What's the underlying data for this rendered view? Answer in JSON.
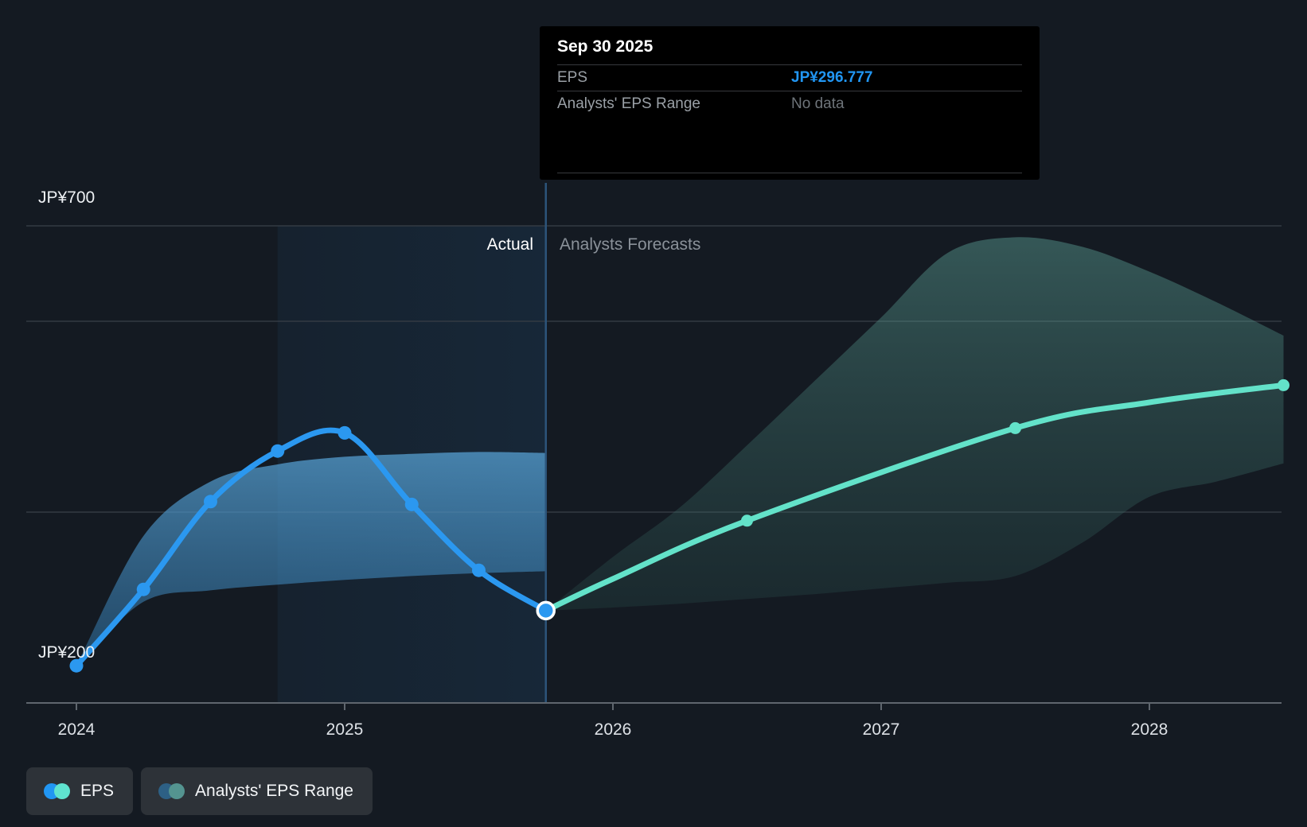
{
  "tooltip": {
    "date": "Sep 30 2025",
    "rows": [
      {
        "label": "EPS",
        "value": "JP¥296.777",
        "kind": "eps"
      },
      {
        "label": "Analysts' EPS Range",
        "value": "No data",
        "kind": "nodata"
      }
    ]
  },
  "labels": {
    "actual": "Actual",
    "forecast": "Analysts Forecasts"
  },
  "legend": {
    "items": [
      {
        "label": "EPS",
        "colors": [
          "#2196f3",
          "#5fe3cf"
        ]
      },
      {
        "label": "Analysts' EPS Range",
        "colors": [
          "#2d6085",
          "#549490"
        ]
      }
    ]
  },
  "colors": {
    "accent_blue": "#2196f3",
    "eps_line": "#2b98f0",
    "forecast_line": "#63e2c9",
    "divider": "#2c547a",
    "gridline": "#333a43",
    "axis": "#5f666e"
  },
  "chart_data": {
    "type": "line",
    "title": "EPS actual vs analysts forecast",
    "x_axis": {
      "unit": "year",
      "range": [
        2023.81,
        2028.5
      ]
    },
    "x_ticks": [
      {
        "year": 2024,
        "label": "2024"
      },
      {
        "year": 2025,
        "label": "2025"
      },
      {
        "year": 2026,
        "label": "2026"
      },
      {
        "year": 2027,
        "label": "2027"
      },
      {
        "year": 2028,
        "label": "2028"
      }
    ],
    "y_axis": {
      "unit": "JP¥",
      "range": [
        200,
        700
      ],
      "top_label": "JP¥700",
      "bottom_label": "JP¥200",
      "gridlines": [
        700,
        600,
        400
      ],
      "baseline": 200
    },
    "divider_x": 2025.75,
    "highlight": {
      "from": 2024.75,
      "to": 2025.75
    },
    "current_point": {
      "x": 2025.75,
      "y": 296.777
    },
    "series": [
      {
        "name": "EPS",
        "color": "#2b98f0",
        "points": [
          {
            "x": 2024.0,
            "y": 239,
            "dot": true
          },
          {
            "x": 2024.25,
            "y": 319,
            "dot": true
          },
          {
            "x": 2024.5,
            "y": 411,
            "dot": true
          },
          {
            "x": 2024.75,
            "y": 464,
            "dot": true
          },
          {
            "x": 2025.0,
            "y": 483,
            "dot": true
          },
          {
            "x": 2025.25,
            "y": 408,
            "dot": true
          },
          {
            "x": 2025.5,
            "y": 339,
            "dot": true
          },
          {
            "x": 2025.75,
            "y": 296.777,
            "dot": false
          }
        ]
      },
      {
        "name": "EPS forecast",
        "color": "#63e2c9",
        "points": [
          {
            "x": 2025.75,
            "y": 296.777,
            "dot": false
          },
          {
            "x": 2026.0,
            "y": 330,
            "dot": false
          },
          {
            "x": 2026.5,
            "y": 391,
            "dot": true
          },
          {
            "x": 2027.5,
            "y": 488,
            "dot": true
          },
          {
            "x": 2028.0,
            "y": 515,
            "dot": false
          },
          {
            "x": 2028.5,
            "y": 533,
            "dot": true
          }
        ]
      }
    ],
    "bands": [
      {
        "name": "actual-eps-range",
        "kind": "actual",
        "points": [
          {
            "x": 2024.0,
            "low": 239,
            "high": 239
          },
          {
            "x": 2024.25,
            "low": 306,
            "high": 375
          },
          {
            "x": 2024.5,
            "low": 318,
            "high": 432
          },
          {
            "x": 2024.75,
            "low": 324,
            "high": 450
          },
          {
            "x": 2025.0,
            "low": 329,
            "high": 458
          },
          {
            "x": 2025.25,
            "low": 333,
            "high": 461
          },
          {
            "x": 2025.5,
            "low": 336,
            "high": 463
          },
          {
            "x": 2025.75,
            "low": 338,
            "high": 462
          }
        ]
      },
      {
        "name": "analysts-eps-range",
        "kind": "forecast",
        "points": [
          {
            "x": 2025.75,
            "low": 296.777,
            "high": 296.777
          },
          {
            "x": 2026.0,
            "low": 300,
            "high": 353
          },
          {
            "x": 2026.25,
            "low": 304,
            "high": 405
          },
          {
            "x": 2026.5,
            "low": 309,
            "high": 470
          },
          {
            "x": 2026.75,
            "low": 314,
            "high": 537
          },
          {
            "x": 2027.0,
            "low": 320,
            "high": 604
          },
          {
            "x": 2027.25,
            "low": 326,
            "high": 672
          },
          {
            "x": 2027.5,
            "low": 333,
            "high": 688
          },
          {
            "x": 2027.75,
            "low": 368,
            "high": 678
          },
          {
            "x": 2028.0,
            "low": 416,
            "high": 652
          },
          {
            "x": 2028.25,
            "low": 432,
            "high": 620
          },
          {
            "x": 2028.5,
            "low": 451,
            "high": 585
          }
        ]
      }
    ]
  }
}
